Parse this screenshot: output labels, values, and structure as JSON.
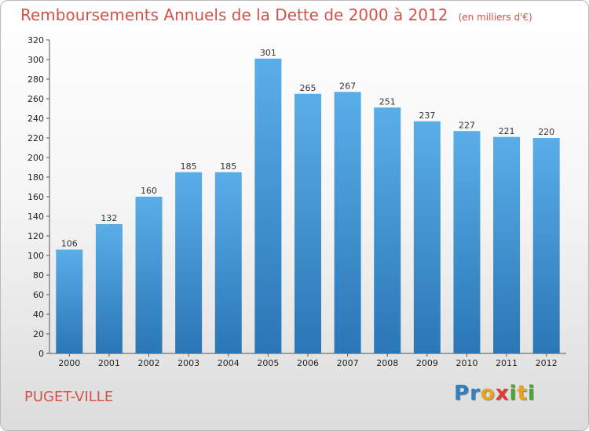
{
  "header": {
    "title": "Remboursements Annuels de la Dette de 2000 à 2012",
    "subtitle": "(en milliers d'€)"
  },
  "footer": {
    "town": "PUGET-VILLE",
    "logo_letters": [
      "P",
      "r",
      "o",
      "x",
      "i",
      "t",
      "i"
    ],
    "logo_colors": [
      "#2f7fc1",
      "#2f7fc1",
      "#e8a41b",
      "#e23b2e",
      "#4aa832",
      "#e8a41b",
      "#4aa832"
    ]
  },
  "chart_data": {
    "type": "bar",
    "title": "Remboursements Annuels de la Dette de 2000 à 2012",
    "subtitle": "(en milliers d'€)",
    "categories": [
      "2000",
      "2001",
      "2002",
      "2003",
      "2004",
      "2005",
      "2006",
      "2007",
      "2008",
      "2009",
      "2010",
      "2011",
      "2012"
    ],
    "values": [
      106,
      132,
      160,
      185,
      185,
      301,
      265,
      267,
      251,
      237,
      227,
      221,
      220
    ],
    "ylim": [
      0,
      320
    ],
    "y_ticks": [
      0,
      20,
      40,
      60,
      80,
      100,
      120,
      140,
      160,
      180,
      200,
      220,
      240,
      260,
      280,
      300,
      320
    ],
    "xlabel": "",
    "ylabel": "",
    "grid": false,
    "bar_color_top": "#5aaee8",
    "bar_color_bottom": "#2a76b6"
  }
}
